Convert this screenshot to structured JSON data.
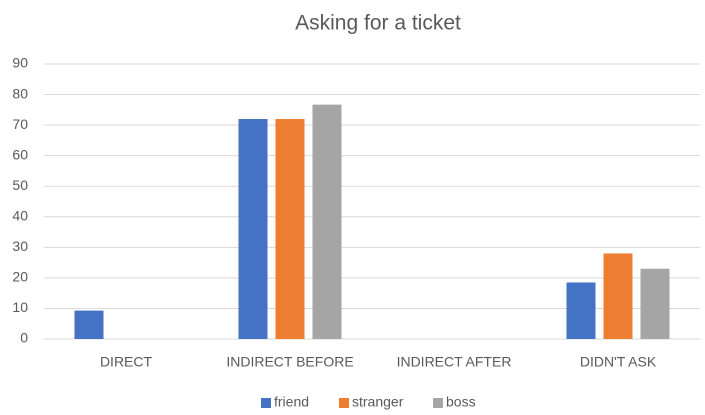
{
  "chart_data": {
    "type": "bar",
    "title": "Asking for a ticket",
    "categories": [
      "DIRECT",
      "INDIRECT BEFORE",
      "INDIRECT AFTER",
      "DIDN'T ASK"
    ],
    "series": [
      {
        "name": "friend",
        "color": "#4472c4",
        "values": [
          9.3,
          72,
          0,
          18.5
        ]
      },
      {
        "name": "stranger",
        "color": "#ed7d31",
        "values": [
          0,
          72,
          0,
          28
        ]
      },
      {
        "name": "boss",
        "color": "#a5a5a5",
        "values": [
          0,
          76.7,
          0,
          23
        ]
      }
    ],
    "ylim": [
      0,
      90
    ],
    "yticks": [
      0,
      10,
      20,
      30,
      40,
      50,
      60,
      70,
      80,
      90
    ],
    "grid": true,
    "legend": "bottom"
  }
}
